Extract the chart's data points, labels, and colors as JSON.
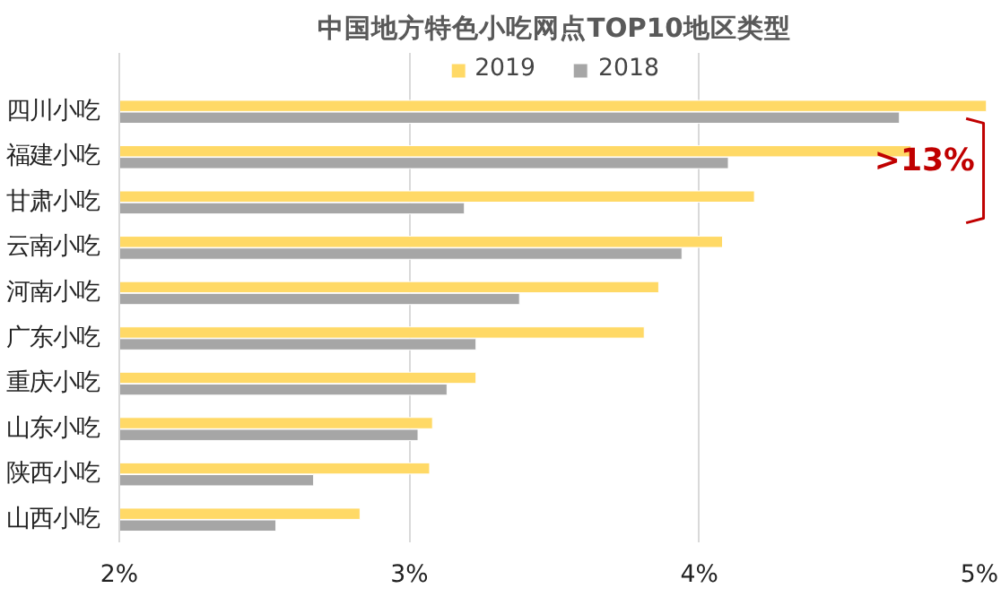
{
  "chart_data": {
    "type": "bar",
    "orientation": "horizontal",
    "title": "中国地方特色小吃网点TOP10地区类型",
    "categories": [
      "四川小吃",
      "福建小吃",
      "甘肃小吃",
      "云南小吃",
      "河南小吃",
      "广东小吃",
      "重庆小吃",
      "山东小吃",
      "陕西小吃",
      "山西小吃"
    ],
    "series": [
      {
        "name": "2019",
        "color": "#ffd966",
        "values": [
          4.99,
          4.73,
          4.19,
          4.08,
          3.86,
          3.81,
          3.23,
          3.08,
          3.07,
          2.83
        ]
      },
      {
        "name": "2018",
        "color": "#a6a6a6",
        "values": [
          4.69,
          4.1,
          3.19,
          3.94,
          3.38,
          3.23,
          3.13,
          3.03,
          2.67,
          2.54
        ]
      }
    ],
    "xlim": [
      2,
      5
    ],
    "xticks": [
      {
        "value": 2,
        "label": "2%"
      },
      {
        "value": 3,
        "label": "3%"
      },
      {
        "value": 4,
        "label": "4%"
      },
      {
        "value": 5,
        "label": "5%"
      }
    ],
    "grid": "x",
    "legend": "top",
    "annotations": [
      ">13%"
    ]
  }
}
